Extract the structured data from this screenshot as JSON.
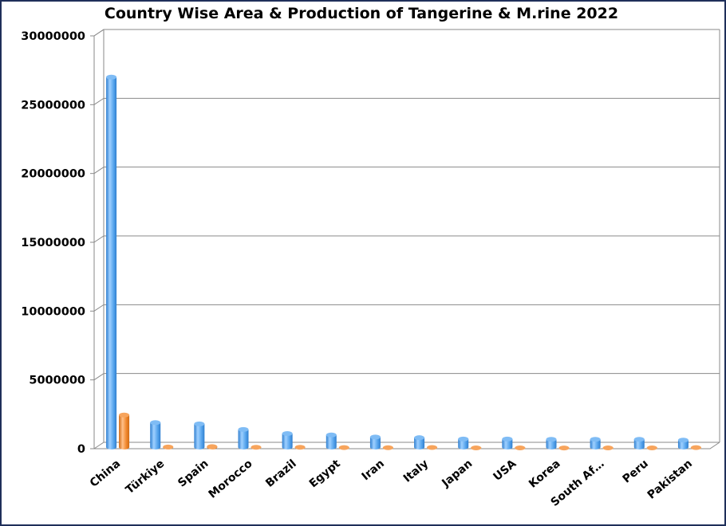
{
  "chart_data": {
    "type": "bar",
    "title": "Country Wise Area & Production of Tangerine & M.rine 2022",
    "xlabel": "",
    "ylabel": "",
    "ylim": [
      0,
      30000000
    ],
    "yticks": [
      "0",
      "5000000",
      "10000000",
      "15000000",
      "20000000",
      "25000000",
      "30000000"
    ],
    "grid": true,
    "legend": "none",
    "categories": [
      "China",
      "Türkiye",
      "Spain",
      "Morocco",
      "Brazil",
      "Egypt",
      "Iran",
      "Italy",
      "Japan",
      "USA",
      "Korea",
      "South Af…",
      "Peru",
      "Pakistan"
    ],
    "series": [
      {
        "color": "#5aa7ee",
        "values": [
          27000000,
          1900000,
          1800000,
          1400000,
          1100000,
          1000000,
          850000,
          800000,
          700000,
          700000,
          680000,
          680000,
          680000,
          620000
        ]
      },
      {
        "color": "#f28a30",
        "values": [
          2450000,
          120000,
          150000,
          100000,
          100000,
          80000,
          70000,
          90000,
          60000,
          60000,
          50000,
          60000,
          60000,
          80000
        ]
      }
    ]
  }
}
